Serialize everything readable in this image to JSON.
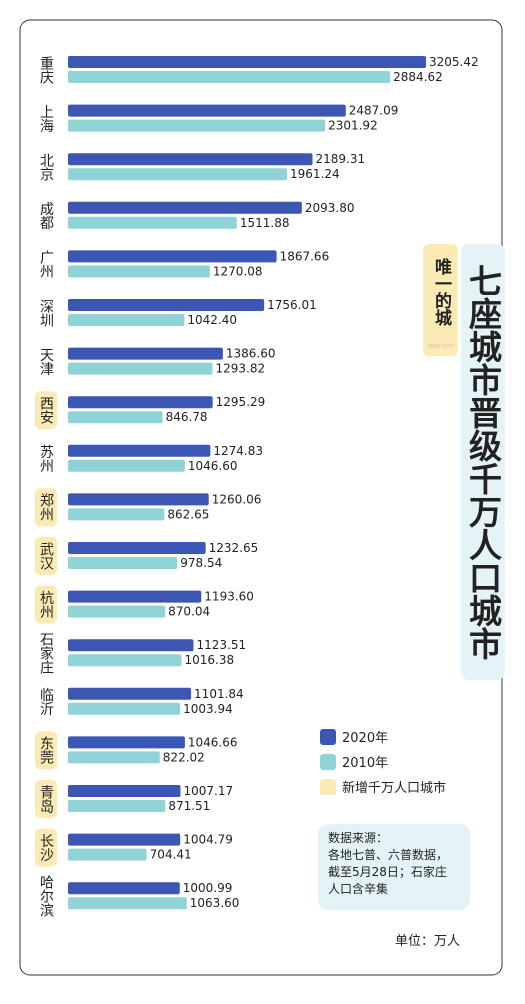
{
  "chart_data": {
    "type": "bar",
    "orientation": "horizontal",
    "title": "七座城市晋级千万人口城市",
    "side_label": "唯一的城",
    "side_label_en": "ONLY CITY",
    "categories": [
      "重庆",
      "上海",
      "北京",
      "成都",
      "广州",
      "深圳",
      "天津",
      "西安",
      "苏州",
      "郑州",
      "武汉",
      "杭州",
      "石家庄",
      "临沂",
      "东莞",
      "青岛",
      "长沙",
      "哈尔滨"
    ],
    "series": [
      {
        "name": "2020年",
        "color": "#3b56b3",
        "values": [
          3205.42,
          2487.09,
          2189.31,
          2093.8,
          1867.66,
          1756.01,
          1386.6,
          1295.29,
          1274.83,
          1260.06,
          1232.65,
          1193.6,
          1123.51,
          1101.84,
          1046.66,
          1007.17,
          1004.79,
          1000.99
        ],
        "value_labels": [
          "3205.42",
          "2487.09",
          "2189.31",
          "2093.80",
          "1867.66",
          "1756.01",
          "1386.60",
          "1295.29",
          "1274.83",
          "1260.06",
          "1232.65",
          "1193.60",
          "1123.51",
          "1101.84",
          "1046.66",
          "1007.17",
          "1004.79",
          "1000.99"
        ]
      },
      {
        "name": "2010年",
        "color": "#8fd3d6",
        "values": [
          2884.62,
          2301.92,
          1961.24,
          1511.88,
          1270.08,
          1042.4,
          1293.82,
          846.78,
          1046.6,
          862.65,
          978.54,
          870.04,
          1016.38,
          1003.94,
          822.02,
          871.51,
          704.41,
          1063.6
        ],
        "value_labels": [
          "2884.62",
          "2301.92",
          "1961.24",
          "1511.88",
          "1270.08",
          "1042.40",
          "1293.82",
          "846.78",
          "1046.60",
          "862.65",
          "978.54",
          "870.04",
          "1016.38",
          "1003.94",
          "822.02",
          "871.51",
          "704.41",
          "1063.60"
        ]
      }
    ],
    "highlight": {
      "name": "新增千万人口城市",
      "color": "#fbeab3",
      "flags": [
        false,
        false,
        false,
        false,
        false,
        false,
        false,
        true,
        false,
        true,
        true,
        true,
        false,
        false,
        true,
        true,
        true,
        false
      ]
    },
    "note": [
      "数据来源：",
      "各地七普、六普数据，",
      "截至5月28日；石家庄",
      "人口含辛集"
    ],
    "unit": "单位：万人",
    "legend": "bottom-right"
  }
}
